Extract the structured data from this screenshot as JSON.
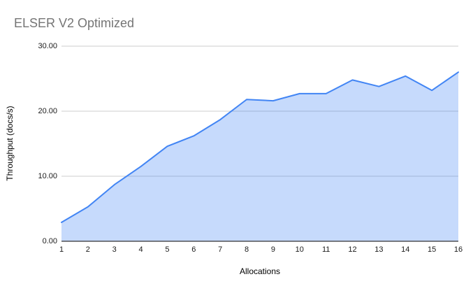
{
  "header": {
    "title": "ELSER V2 Optimized"
  },
  "colors": {
    "line": "#4285f4",
    "fill": "rgba(66,133,244,0.30)",
    "gridline": "#cccccc",
    "axis_line": "#333333",
    "title_text": "#757575",
    "tick_text": "#1a1a1a"
  },
  "chart_data": {
    "type": "area",
    "title": "ELSER V2 Optimized",
    "xlabel": "Allocations",
    "ylabel": "Throughput (docs/s)",
    "x": [
      1,
      2,
      3,
      4,
      5,
      6,
      7,
      8,
      9,
      10,
      11,
      12,
      13,
      14,
      15,
      16
    ],
    "xtick_labels": [
      "1",
      "2",
      "3",
      "4",
      "5",
      "6",
      "7",
      "8",
      "9",
      "10",
      "11",
      "12",
      "13",
      "14",
      "15",
      "16"
    ],
    "series": [
      {
        "name": "Throughput (docs/s)",
        "values": [
          2.9,
          5.3,
          8.7,
          11.5,
          14.6,
          16.2,
          18.7,
          21.8,
          21.6,
          22.7,
          22.7,
          24.8,
          23.8,
          25.4,
          23.2,
          26.0
        ]
      }
    ],
    "ylim": [
      0,
      30
    ],
    "yticks": [
      0,
      10,
      20,
      30
    ],
    "ytick_labels": [
      "0.00",
      "10.00",
      "20.00",
      "30.00"
    ],
    "grid": true,
    "legend": "none"
  }
}
